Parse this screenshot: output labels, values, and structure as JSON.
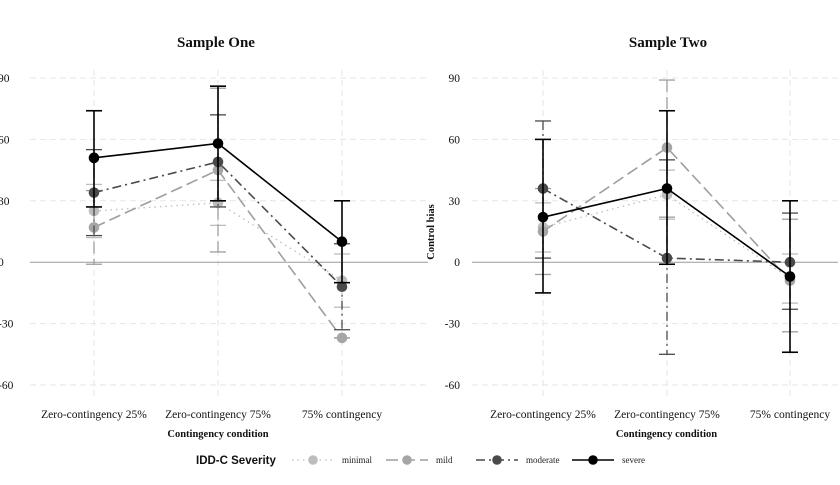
{
  "chart_data": {
    "type": "line",
    "panels": [
      {
        "title": "Sample One",
        "xlabel": "Contingency condition",
        "ylabel": "",
        "categories": [
          "Zero-contingency 25%",
          "Zero-contingency 75%",
          "75% contingency"
        ],
        "ylim": [
          -70,
          95
        ],
        "yticks": [
          -60,
          -30,
          0,
          30,
          60,
          90
        ],
        "series": [
          {
            "name": "minimal",
            "values": [
              25,
              29,
              -9
            ],
            "err_low": [
              12,
              18,
              -22
            ],
            "err_high": [
              38,
              40,
              4
            ]
          },
          {
            "name": "mild",
            "values": [
              17,
              45,
              -37
            ],
            "err_low": [
              -1,
              5,
              -37
            ],
            "err_high": [
              35,
              85,
              -37
            ]
          },
          {
            "name": "moderate",
            "values": [
              34,
              49,
              -12
            ],
            "err_low": [
              13,
              27,
              -33
            ],
            "err_high": [
              55,
              72,
              9
            ]
          },
          {
            "name": "severe",
            "values": [
              51,
              58,
              10
            ],
            "err_low": [
              27,
              30,
              -10
            ],
            "err_high": [
              74,
              86,
              30
            ]
          }
        ]
      },
      {
        "title": "Sample Two",
        "xlabel": "Contingency condition",
        "ylabel": "Control bias",
        "categories": [
          "Zero-contingency 25%",
          "Zero-contingency 75%",
          "75% contingency"
        ],
        "ylim": [
          -70,
          95
        ],
        "yticks": [
          -60,
          -30,
          0,
          30,
          60,
          90
        ],
        "series": [
          {
            "name": "minimal",
            "values": [
              17,
              33,
              -8
            ],
            "err_low": [
              5,
              21,
              -20
            ],
            "err_high": [
              29,
              45,
              4
            ]
          },
          {
            "name": "mild",
            "values": [
              15,
              56,
              -9
            ],
            "err_low": [
              -6,
              22,
              -34
            ],
            "err_high": [
              36,
              89,
              21
            ]
          },
          {
            "name": "moderate",
            "values": [
              36,
              2,
              0
            ],
            "err_low": [
              2,
              -45,
              -23
            ],
            "err_high": [
              69,
              50,
              24
            ]
          },
          {
            "name": "severe",
            "values": [
              22,
              36,
              -7
            ],
            "err_low": [
              -15,
              -1,
              -44
            ],
            "err_high": [
              60,
              74,
              30
            ]
          }
        ]
      }
    ],
    "legend": {
      "title": "IDD-C Severity",
      "position": "bottom",
      "entries": [
        {
          "name": "minimal",
          "color": "#bdbdbd",
          "dash": "dotted"
        },
        {
          "name": "mild",
          "color": "#9e9e9e",
          "dash": "longdash"
        },
        {
          "name": "moderate",
          "color": "#4a4a4a",
          "dash": "dashdot"
        },
        {
          "name": "severe",
          "color": "#000000",
          "dash": "solid"
        }
      ]
    },
    "grid": true,
    "zero_line": true
  }
}
